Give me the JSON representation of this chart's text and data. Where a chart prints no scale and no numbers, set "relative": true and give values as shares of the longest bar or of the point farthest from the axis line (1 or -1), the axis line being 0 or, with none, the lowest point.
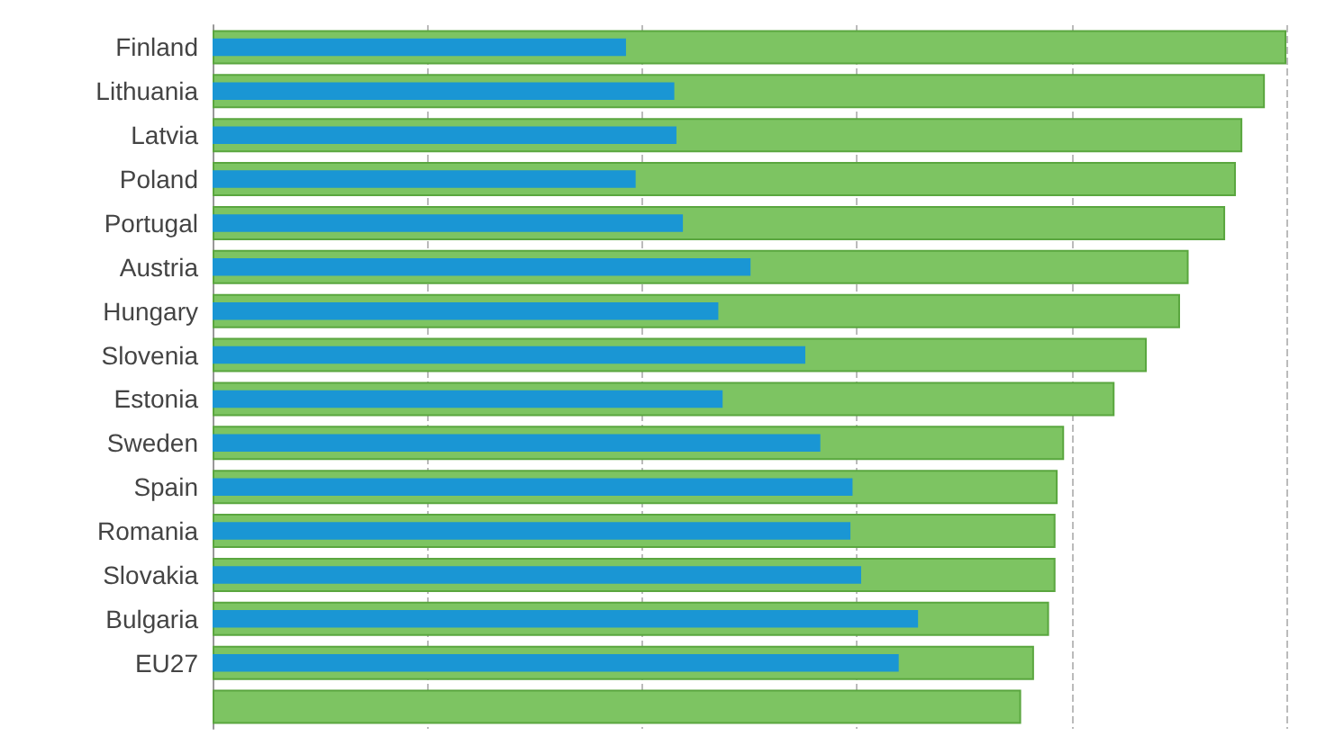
{
  "chart_data": {
    "type": "bar",
    "orientation": "horizontal",
    "relative": true,
    "grid": "x",
    "categories": [
      "Finland",
      "Lithuania",
      "Latvia",
      "Poland",
      "Portugal",
      "Austria",
      "Hungary",
      "Slovenia",
      "Estonia",
      "Sweden",
      "Spain",
      "Romania",
      "Slovakia",
      "Bulgaria",
      "EU27",
      null
    ],
    "series": [
      {
        "color": "#7dc462",
        "values": [
          1,
          0.98,
          0.959,
          0.953,
          0.943,
          0.909,
          0.901,
          0.87,
          0.84,
          0.793,
          0.787,
          0.785,
          0.785,
          0.779,
          0.765,
          0.753
        ]
      },
      {
        "color": "#1a96d4",
        "values": [
          0.385,
          0.43,
          0.432,
          0.394,
          0.438,
          0.501,
          0.471,
          0.552,
          0.475,
          0.566,
          0.596,
          0.594,
          0.604,
          0.657,
          0.639,
          null
        ]
      }
    ]
  }
}
